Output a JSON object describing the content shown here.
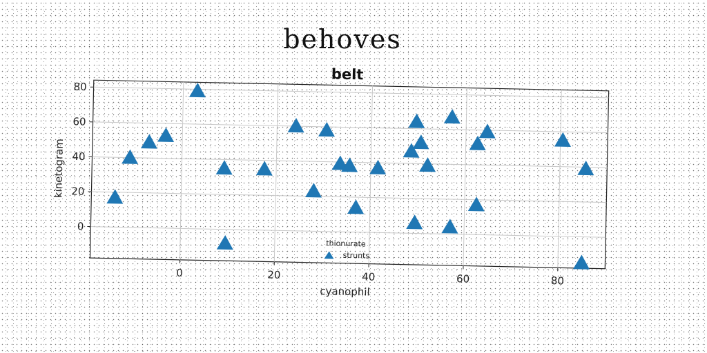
{
  "figure": {
    "suptitle": "behoves"
  },
  "chart_data": {
    "type": "scatter",
    "title": "belt",
    "xlabel": "cyanophil",
    "ylabel": "kinetogram",
    "xlim": [
      -19,
      90
    ],
    "ylim": [
      -18,
      84
    ],
    "xticks": [
      0,
      20,
      40,
      60,
      80
    ],
    "yticks": [
      0,
      20,
      40,
      60,
      80
    ],
    "grid": true,
    "legend": {
      "title": "thionurate",
      "placement": "bottom-center",
      "entries": [
        "strunts"
      ]
    },
    "series": [
      {
        "name": "strunts",
        "marker": "triangle",
        "color": "#1f77b4",
        "points": [
          [
            -14,
            17
          ],
          [
            -11,
            40
          ],
          [
            -7,
            49
          ],
          [
            -3.5,
            53
          ],
          [
            3,
            79
          ],
          [
            9,
            35
          ],
          [
            9.5,
            -8
          ],
          [
            17.5,
            35
          ],
          [
            24,
            60
          ],
          [
            28,
            23
          ],
          [
            30.5,
            58
          ],
          [
            33.5,
            39
          ],
          [
            35.5,
            38
          ],
          [
            37,
            14
          ],
          [
            41.5,
            37
          ],
          [
            48.5,
            47
          ],
          [
            49.5,
            64
          ],
          [
            50.5,
            52
          ],
          [
            52,
            39
          ],
          [
            49.5,
            6
          ],
          [
            57,
            67
          ],
          [
            57,
            4
          ],
          [
            62.5,
            17
          ],
          [
            62.5,
            52
          ],
          [
            64.5,
            59
          ],
          [
            80.5,
            55
          ],
          [
            85.5,
            39
          ],
          [
            85,
            -15
          ]
        ]
      }
    ]
  }
}
